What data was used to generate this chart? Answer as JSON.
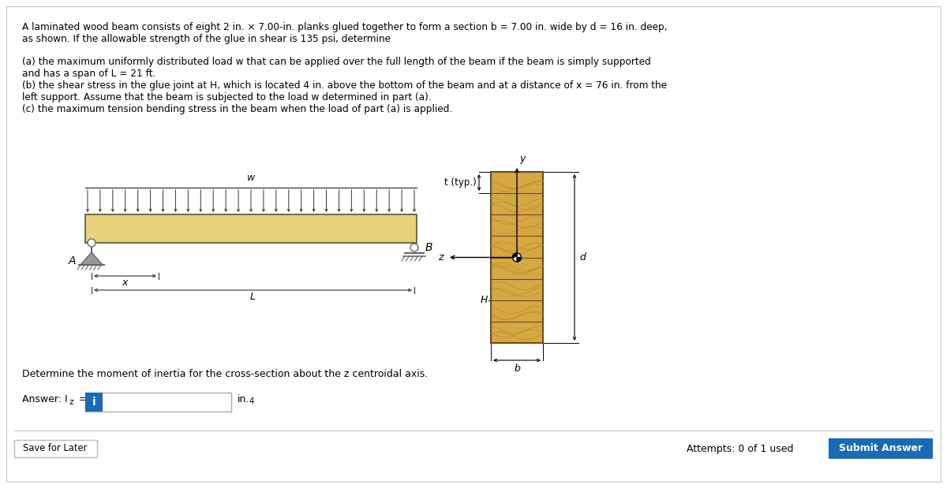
{
  "bg_color": "#ffffff",
  "title_line1": "A laminated wood beam consists of eight 2 in. × 7.00-in. planks glued together to form a section b = 7.00 in. wide by d = 16 in. deep,",
  "title_line2": "as shown. If the allowable strength of the glue in shear is 135 psi, determine",
  "part_a_line1": "(a) the maximum uniformly distributed load w that can be applied over the full length of the beam if the beam is simply supported",
  "part_a_line2": "and has a span of L = 21 ft.",
  "part_b_line1": "(b) the shear stress in the glue joint at H, which is located 4 in. above the bottom of the beam and at a distance of x = 76 in. from the",
  "part_b_line2": "left support. Assume that the beam is subjected to the load w determined in part (a).",
  "part_c": "(c) the maximum tension bending stress in the beam when the load of part (a) is applied.",
  "question_text": "Determine the moment of inertia for the cross-section about the z centroidal axis.",
  "answer_label": "Answer: I",
  "answer_sub": "z",
  "answer_eq": " =",
  "units_label": "in.",
  "units_sup": "4",
  "save_label": "Save for Later",
  "attempts_label": "Attempts: 0 of 1 used",
  "submit_label": "Submit Answer",
  "beam_color": "#e8d17a",
  "beam_edge": "#555533",
  "cross_color": "#d4a843",
  "cross_edge": "#6b4c1e",
  "cross_line": "#c49a30",
  "grain_color": "#b8872a",
  "support_color": "#999999",
  "support_dark": "#666666",
  "arrow_color": "#333333",
  "dim_color": "#333333",
  "submit_bg": "#1a6bb5",
  "info_bg": "#1a6bb5"
}
